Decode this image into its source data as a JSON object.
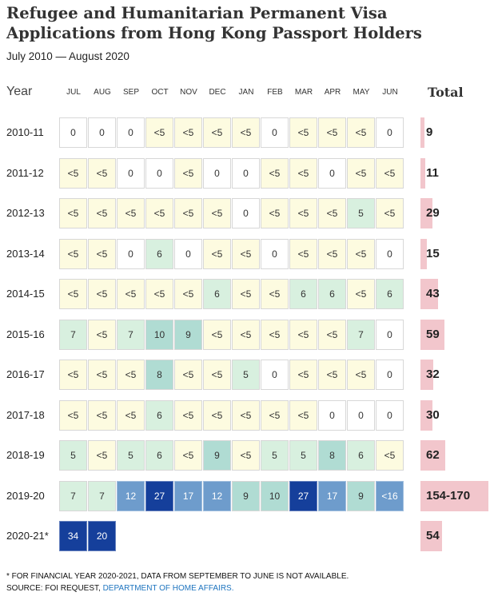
{
  "title": "Refugee and Humanitarian Permanent Visa Applications from Hong Kong Passport Holders",
  "subtitle": "July 2010 — August 2020",
  "colors": {
    "lt5": "#fdfbe0",
    "zero": "#ffffff",
    "c5_7": "#d8f0df",
    "c8_10": "#b0dcd3",
    "c12_17": "#6e9ccc",
    "c20_34": "#153f9b",
    "bar": "#f2c6cc",
    "border": "#d7d7d7"
  },
  "chart_data": {
    "type": "table",
    "year_header": "Year",
    "total_header": "Total",
    "months": [
      "JUL",
      "AUG",
      "SEP",
      "OCT",
      "NOV",
      "DEC",
      "JAN",
      "FEB",
      "MAR",
      "APR",
      "MAY",
      "JUN"
    ],
    "rows": [
      {
        "year": "2010-11",
        "values": [
          "0",
          "0",
          "0",
          "<5",
          "<5",
          "<5",
          "<5",
          "0",
          "<5",
          "<5",
          "<5",
          "0"
        ],
        "total": "9",
        "total_value": 9
      },
      {
        "year": "2011-12",
        "values": [
          "<5",
          "<5",
          "0",
          "0",
          "<5",
          "0",
          "0",
          "<5",
          "<5",
          "0",
          "<5",
          "<5"
        ],
        "total": "11",
        "total_value": 11
      },
      {
        "year": "2012-13",
        "values": [
          "<5",
          "<5",
          "<5",
          "<5",
          "<5",
          "<5",
          "0",
          "<5",
          "<5",
          "<5",
          "5",
          "<5"
        ],
        "total": "29",
        "total_value": 29
      },
      {
        "year": "2013-14",
        "values": [
          "<5",
          "<5",
          "0",
          "6",
          "0",
          "<5",
          "<5",
          "0",
          "<5",
          "<5",
          "<5",
          "0"
        ],
        "total": "15",
        "total_value": 15
      },
      {
        "year": "2014-15",
        "values": [
          "<5",
          "<5",
          "<5",
          "<5",
          "<5",
          "6",
          "<5",
          "<5",
          "6",
          "6",
          "<5",
          "6"
        ],
        "total": "43",
        "total_value": 43
      },
      {
        "year": "2015-16",
        "values": [
          "7",
          "<5",
          "7",
          "10",
          "9",
          "<5",
          "<5",
          "<5",
          "<5",
          "<5",
          "7",
          "0"
        ],
        "total": "59",
        "total_value": 59
      },
      {
        "year": "2016-17",
        "values": [
          "<5",
          "<5",
          "<5",
          "8",
          "<5",
          "<5",
          "5",
          "0",
          "<5",
          "<5",
          "<5",
          "0"
        ],
        "total": "32",
        "total_value": 32
      },
      {
        "year": "2017-18",
        "values": [
          "<5",
          "<5",
          "<5",
          "6",
          "<5",
          "<5",
          "<5",
          "<5",
          "<5",
          "0",
          "0",
          "0"
        ],
        "total": "30",
        "total_value": 30
      },
      {
        "year": "2018-19",
        "values": [
          "5",
          "<5",
          "5",
          "6",
          "<5",
          "9",
          "<5",
          "5",
          "5",
          "8",
          "6",
          "<5"
        ],
        "total": "62",
        "total_value": 62
      },
      {
        "year": "2019-20",
        "values": [
          "7",
          "7",
          "12",
          "27",
          "17",
          "12",
          "9",
          "10",
          "27",
          "17",
          "9",
          "<16"
        ],
        "total": "154-170",
        "total_value": 170
      },
      {
        "year": "2020-21*",
        "values": [
          "34",
          "20",
          "",
          "",
          "",
          "",
          "",
          "",
          "",
          "",
          "",
          ""
        ],
        "total": "54",
        "total_value": 54
      }
    ]
  },
  "footnote": "* For financial year 2020-2021, data from September to June is not available.",
  "source_prefix": "Source: FOI request, ",
  "source_link": "Department of Home Affairs."
}
